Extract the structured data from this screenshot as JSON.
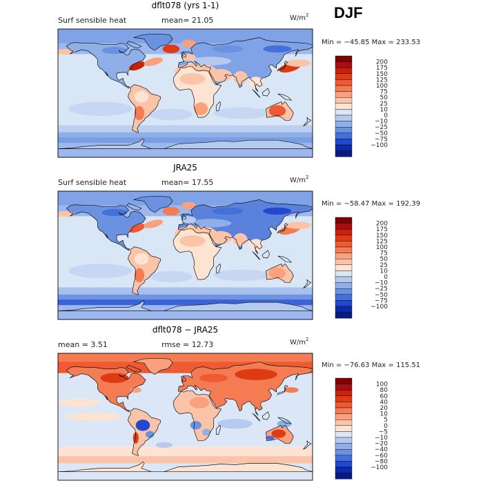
{
  "season": "DJF",
  "colors": {
    "map_outline": "#000000",
    "land_line": "#111111"
  },
  "panels": [
    {
      "title": "dflt078 (yrs 1-1)",
      "left_label": "Surf sensible heat",
      "stat_text": "mean=  21.05",
      "unit_base": "W/m",
      "unit_exp": "2",
      "minmax": "Min = −45.85 Max = 233.53",
      "kind": "model",
      "legend": {
        "ticks": [
          "200",
          "175",
          "150",
          "125",
          "100",
          "75",
          "50",
          "25",
          "10",
          "0",
          "−10",
          "−25",
          "−50",
          "−75",
          "−100"
        ],
        "colors": [
          "#7f0000",
          "#a50f0f",
          "#c8220a",
          "#de3b14",
          "#ee5a32",
          "#f57c52",
          "#f9a07c",
          "#fbc3a7",
          "#fde3d2",
          "#dbe7f6",
          "#b4cbef",
          "#8fafe8",
          "#6b92e0",
          "#4470da",
          "#2148cf",
          "#0b2aa8",
          "#061a80"
        ]
      }
    },
    {
      "title": "JRA25",
      "left_label": "Surf sensible heat",
      "stat_text": "mean=  17.55",
      "unit_base": "W/m",
      "unit_exp": "2",
      "minmax": "Min = −58.47 Max = 192.39",
      "kind": "obs",
      "legend": {
        "ticks": [
          "200",
          "175",
          "150",
          "125",
          "100",
          "75",
          "50",
          "25",
          "10",
          "0",
          "−10",
          "−25",
          "−50",
          "−75",
          "−100"
        ],
        "colors": [
          "#7f0000",
          "#a50f0f",
          "#c8220a",
          "#de3b14",
          "#ee5a32",
          "#f57c52",
          "#f9a07c",
          "#fbc3a7",
          "#fde3d2",
          "#dbe7f6",
          "#b4cbef",
          "#8fafe8",
          "#6b92e0",
          "#4470da",
          "#2148cf",
          "#0b2aa8",
          "#061a80"
        ]
      }
    },
    {
      "title": "dflt078 − JRA25",
      "left_label": "mean =    3.51",
      "stat_text": "rmse =   12.73",
      "unit_base": "W/m",
      "unit_exp": "2",
      "minmax": "Min = −76.63 Max = 115.51",
      "kind": "diff",
      "legend": {
        "ticks": [
          "100",
          "80",
          "60",
          "40",
          "20",
          "10",
          "5",
          "0",
          "−5",
          "−10",
          "−20",
          "−40",
          "−60",
          "−80",
          "−100"
        ],
        "colors": [
          "#7f0000",
          "#a50f0f",
          "#c8220a",
          "#de3b14",
          "#ee5a32",
          "#f57c52",
          "#f9a07c",
          "#fbc3a7",
          "#fde3d2",
          "#dbe7f6",
          "#b4cbef",
          "#8fafe8",
          "#6b92e0",
          "#4470da",
          "#2148cf",
          "#0b2aa8",
          "#061a80"
        ]
      }
    }
  ],
  "chart_data": [
    {
      "type": "heatmap",
      "title": "dflt078 (yrs 1-1)",
      "subtitle": "Surf sensible heat",
      "mean": 21.05,
      "units": "W/m2",
      "min": -45.85,
      "max": 233.53,
      "levels": [
        -100,
        -75,
        -50,
        -25,
        -10,
        0,
        10,
        25,
        50,
        75,
        100,
        125,
        150,
        175,
        200
      ]
    },
    {
      "type": "heatmap",
      "title": "JRA25",
      "subtitle": "Surf sensible heat",
      "mean": 17.55,
      "units": "W/m2",
      "min": -58.47,
      "max": 192.39,
      "levels": [
        -100,
        -75,
        -50,
        -25,
        -10,
        0,
        10,
        25,
        50,
        75,
        100,
        125,
        150,
        175,
        200
      ]
    },
    {
      "type": "heatmap",
      "title": "dflt078 − JRA25",
      "mean": 3.51,
      "rmse": 12.73,
      "units": "W/m2",
      "min": -76.63,
      "max": 115.51,
      "levels": [
        -100,
        -80,
        -60,
        -40,
        -20,
        -10,
        -5,
        0,
        5,
        10,
        20,
        40,
        60,
        80,
        100
      ]
    }
  ]
}
